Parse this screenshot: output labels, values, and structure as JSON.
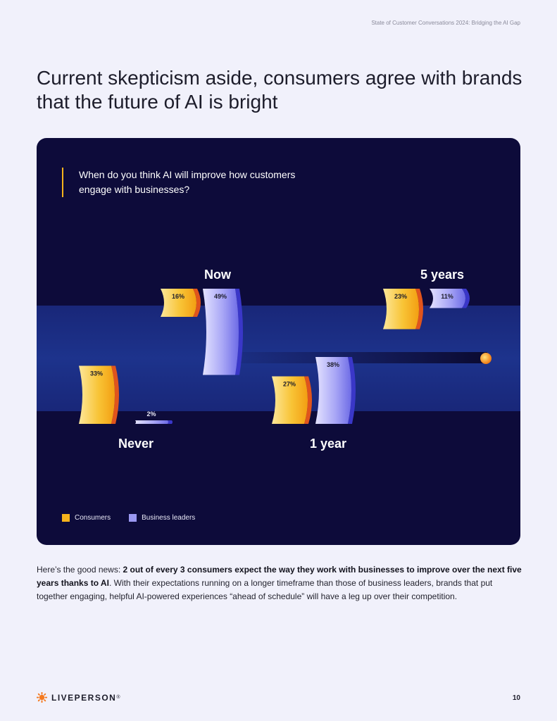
{
  "header": {
    "running_title": "State of Customer Conversations 2024: Bridging the AI Gap"
  },
  "title": "Current skepticism aside, consumers agree with brands that the future of AI is bright",
  "chart_data": {
    "type": "bar",
    "title": "When do you think AI will improve how customers engage with businesses?",
    "categories": [
      "Never",
      "Now",
      "1 year",
      "5 years"
    ],
    "series": [
      {
        "name": "Consumers",
        "values": [
          33,
          16,
          27,
          23
        ],
        "labels": [
          "33%",
          "16%",
          "27%",
          "23%"
        ],
        "color": "#f6b31c"
      },
      {
        "name": "Business leaders",
        "values": [
          2,
          49,
          38,
          11
        ],
        "labels": [
          "2%",
          "49%",
          "38%",
          "11%"
        ],
        "color": "#9a98f2"
      }
    ],
    "ylim": [
      0,
      50
    ],
    "legend": "bottom-left",
    "grid": false
  },
  "body": {
    "intro": "Here’s the good news: ",
    "highlight": "2 out of every 3 consumers expect the way they work with businesses to improve over the next five years thanks to AI",
    "rest": ". With their expectations running on a longer timeframe than those of business leaders, brands that put together engaging, helpful AI-powered experiences “ahead of schedule” will have a leg up over their competition."
  },
  "footer": {
    "brand": "LIVEPERSON",
    "trademark": "®",
    "page_number": "10"
  },
  "colors": {
    "accent": "#f6b31c",
    "consumers": "#f6b31c",
    "business_leaders": "#9a98f2",
    "card": "#0d0b3a"
  }
}
